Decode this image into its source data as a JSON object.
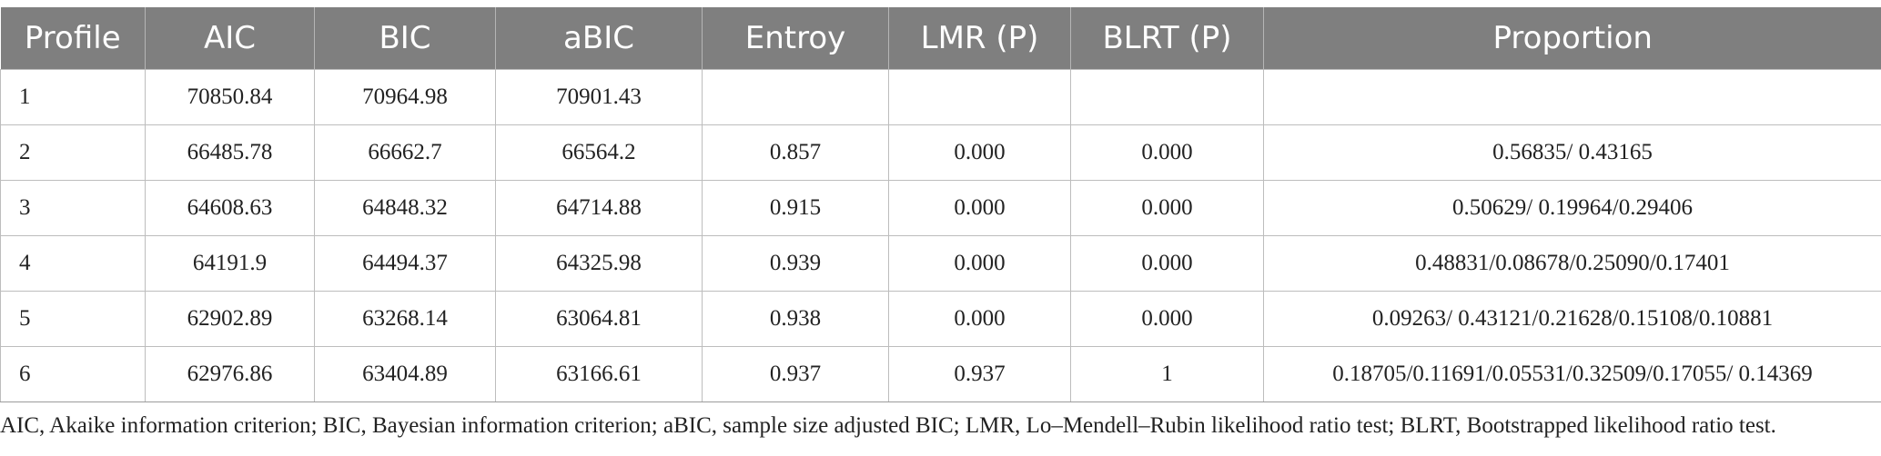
{
  "table": {
    "headers": [
      "Profile",
      "AIC",
      "BIC",
      "aBIC",
      "Entroy",
      "LMR (P)",
      "BLRT (P)",
      "Proportion"
    ],
    "rows": [
      [
        "1",
        "70850.84",
        "70964.98",
        "70901.43",
        "",
        "",
        "",
        ""
      ],
      [
        "2",
        "66485.78",
        "66662.7",
        "66564.2",
        "0.857",
        "0.000",
        "0.000",
        "0.56835/ 0.43165"
      ],
      [
        "3",
        "64608.63",
        "64848.32",
        "64714.88",
        "0.915",
        "0.000",
        "0.000",
        "0.50629/ 0.19964/0.29406"
      ],
      [
        "4",
        "64191.9",
        "64494.37",
        "64325.98",
        "0.939",
        "0.000",
        "0.000",
        "0.48831/0.08678/0.25090/0.17401"
      ],
      [
        "5",
        "62902.89",
        "63268.14",
        "63064.81",
        "0.938",
        "0.000",
        "0.000",
        "0.09263/ 0.43121/0.21628/0.15108/0.10881"
      ],
      [
        "6",
        "62976.86",
        "63404.89",
        "63166.61",
        "0.937",
        "0.937",
        "1",
        "0.18705/0.11691/0.05531/0.32509/0.17055/ 0.14369"
      ]
    ]
  },
  "footnote": "AIC, Akaike information criterion; BIC, Bayesian information criterion; aBIC, sample size adjusted BIC; LMR, Lo–Mendell–Rubin likelihood ratio test; BLRT, Bootstrapped likelihood ratio test.",
  "colors": {
    "header_bg": "#7f7f7f",
    "header_text": "#ffffff",
    "grid": "#bdbdbd"
  }
}
